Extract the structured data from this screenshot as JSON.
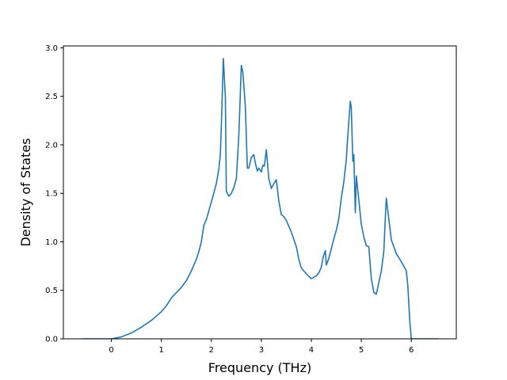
{
  "chart_data": {
    "type": "line",
    "title": "",
    "xlabel": "Frequency (THz)",
    "ylabel": "Density of States",
    "xlim": [
      -0.96,
      6.9
    ],
    "ylim": [
      0,
      3.02
    ],
    "xticks": [
      0,
      1,
      2,
      3,
      4,
      5,
      6
    ],
    "xtick_labels": [
      "0",
      "1",
      "2",
      "3",
      "4",
      "5",
      "6"
    ],
    "yticks": [
      0.0,
      0.5,
      1.0,
      1.5,
      2.0,
      2.5,
      3.0
    ],
    "ytick_labels": [
      "0.0",
      "0.5",
      "1.0",
      "1.5",
      "2.0",
      "2.5",
      "3.0"
    ],
    "grid": false,
    "line_color": "#1f77b4",
    "series": [
      {
        "x": [
          -0.6,
          -0.3,
          0.0,
          0.2,
          0.4,
          0.6,
          0.8,
          1.0,
          1.1,
          1.2,
          1.25,
          1.4,
          1.5,
          1.6,
          1.7,
          1.75,
          1.8,
          1.85,
          1.9,
          2.0,
          2.1,
          2.15,
          2.18,
          2.2,
          2.24,
          2.28,
          2.3,
          2.35,
          2.4,
          2.45,
          2.5,
          2.55,
          2.6,
          2.63,
          2.68,
          2.72,
          2.75,
          2.8,
          2.85,
          2.88,
          2.92,
          2.95,
          3.0,
          3.03,
          3.06,
          3.1,
          3.15,
          3.2,
          3.25,
          3.3,
          3.35,
          3.4,
          3.45,
          3.5,
          3.6,
          3.7,
          3.75,
          3.8,
          3.9,
          4.0,
          4.1,
          4.15,
          4.2,
          4.24,
          4.28,
          4.3,
          4.35,
          4.45,
          4.5,
          4.55,
          4.6,
          4.65,
          4.7,
          4.72,
          4.75,
          4.78,
          4.8,
          4.83,
          4.85,
          4.88,
          4.9,
          5.0,
          5.05,
          5.1,
          5.15,
          5.2,
          5.25,
          5.3,
          5.35,
          5.4,
          5.45,
          5.48,
          5.5,
          5.6,
          5.7,
          5.85,
          5.9,
          5.93,
          5.97,
          6.0,
          6.3,
          6.55
        ],
        "y": [
          0.0,
          0.0,
          0.0,
          0.02,
          0.06,
          0.12,
          0.19,
          0.28,
          0.34,
          0.42,
          0.45,
          0.53,
          0.6,
          0.7,
          0.82,
          0.9,
          1.0,
          1.17,
          1.23,
          1.41,
          1.6,
          1.75,
          1.9,
          2.2,
          2.89,
          2.5,
          1.52,
          1.47,
          1.5,
          1.56,
          1.65,
          2.1,
          2.82,
          2.75,
          2.4,
          1.76,
          1.76,
          1.87,
          1.9,
          1.81,
          1.73,
          1.76,
          1.72,
          1.79,
          1.78,
          1.95,
          1.65,
          1.55,
          1.6,
          1.64,
          1.42,
          1.28,
          1.26,
          1.22,
          1.1,
          0.95,
          0.82,
          0.73,
          0.67,
          0.62,
          0.65,
          0.68,
          0.74,
          0.85,
          0.91,
          0.76,
          0.83,
          1.03,
          1.12,
          1.24,
          1.45,
          1.62,
          1.85,
          2.02,
          2.24,
          2.45,
          2.38,
          1.83,
          1.9,
          1.3,
          1.68,
          1.18,
          1.05,
          0.96,
          0.95,
          0.62,
          0.48,
          0.46,
          0.58,
          0.7,
          0.9,
          1.25,
          1.45,
          1.02,
          0.88,
          0.75,
          0.7,
          0.55,
          0.18,
          0.0,
          0.0,
          0.0
        ]
      }
    ]
  }
}
